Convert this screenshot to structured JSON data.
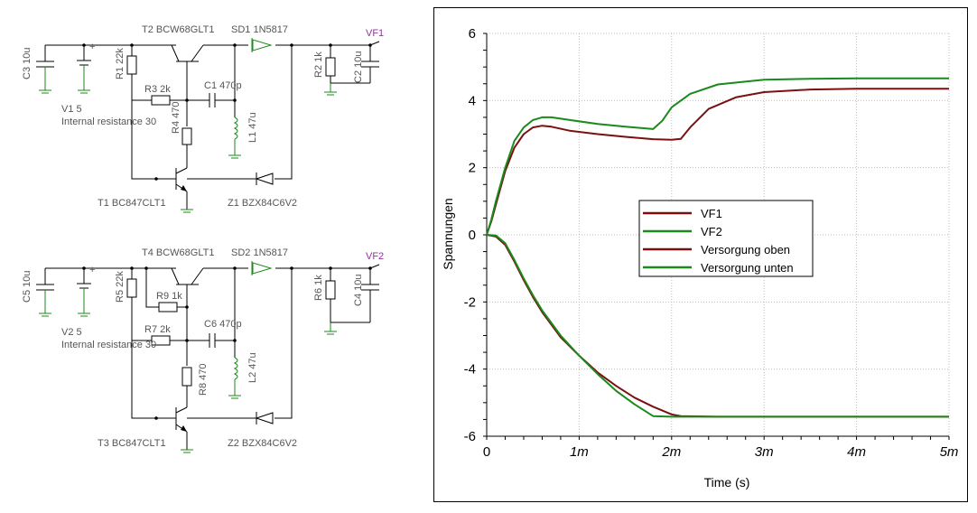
{
  "schematic": {
    "circuit1": {
      "C3": "C3 10u",
      "V1": "V1 5",
      "V1_note": "Internal resistance 30",
      "R1": "R1 22k",
      "T2": "T2 BCW68GLT1",
      "SD1": "SD1 1N5817",
      "VF": "VF1",
      "R2": "R2 1k",
      "C2": "C2 10u",
      "R3": "R3 2k",
      "C1": "C1 470p",
      "R4": "R4 470",
      "L1": "L1 47u",
      "T1": "T1 BC847CLT1",
      "Z1": "Z1 BZX84C6V2"
    },
    "circuit2": {
      "C5": "C5 10u",
      "V2": "V2 5",
      "V2_note": "Internal resistance 30",
      "R5": "R5 22k",
      "T4": "T4 BCW68GLT1",
      "SD2": "SD2 1N5817",
      "VF": "VF2",
      "R6": "R6 1k",
      "C4": "C4 10u",
      "R9": "R9 1k",
      "R7": "R7 2k",
      "C6": "C6 470p",
      "R8": "R8 470",
      "L2": "L2 47u",
      "T3": "T3 BC847CLT1",
      "Z2": "Z2 BZX84C6V2"
    }
  },
  "colors": {
    "dark_red": "#7a1010",
    "green": "#1a8a1a",
    "probe": "#9a2ea0"
  },
  "chart_data": {
    "type": "line",
    "xlabel": "Time (s)",
    "ylabel": "Spannungen",
    "xlim": [
      0,
      0.005
    ],
    "ylim": [
      -6,
      6
    ],
    "x_ticks": [
      0,
      0.001,
      0.002,
      0.003,
      0.004,
      0.005
    ],
    "x_tick_labels": [
      "0",
      "1m",
      "2m",
      "3m",
      "4m",
      "5m"
    ],
    "y_ticks": [
      -6,
      -4,
      -2,
      0,
      2,
      4,
      6
    ],
    "y_tick_labels": [
      "-6",
      "-4",
      "-2",
      "0",
      "2",
      "4",
      "6"
    ],
    "grid": true,
    "legend_position": "center",
    "series": [
      {
        "name": "VF1",
        "color": "#7a1010",
        "x": [
          0,
          5e-05,
          0.0001,
          0.0002,
          0.0003,
          0.0004,
          0.0005,
          0.0006,
          0.0007,
          0.0009,
          0.0012,
          0.0015,
          0.0018,
          0.002,
          0.0021,
          0.0022,
          0.0024,
          0.0027,
          0.003,
          0.0035,
          0.004,
          0.005
        ],
        "y": [
          0,
          0.4,
          0.9,
          1.9,
          2.6,
          3.0,
          3.2,
          3.25,
          3.22,
          3.1,
          3.0,
          2.92,
          2.85,
          2.83,
          2.86,
          3.2,
          3.75,
          4.1,
          4.25,
          4.33,
          4.35,
          4.35
        ]
      },
      {
        "name": "VF2",
        "color": "#1a8a1a",
        "x": [
          0,
          5e-05,
          0.0001,
          0.0002,
          0.0003,
          0.0004,
          0.0005,
          0.0006,
          0.0007,
          0.0009,
          0.0012,
          0.0015,
          0.0018,
          0.0019,
          0.002,
          0.0022,
          0.0025,
          0.003,
          0.0035,
          0.004,
          0.005
        ],
        "y": [
          0,
          0.45,
          1.0,
          2.0,
          2.8,
          3.2,
          3.42,
          3.5,
          3.5,
          3.42,
          3.3,
          3.22,
          3.15,
          3.4,
          3.8,
          4.2,
          4.48,
          4.62,
          4.65,
          4.66,
          4.66
        ]
      },
      {
        "name": "Versorgung oben",
        "color": "#7a1010",
        "x": [
          0,
          0.0001,
          0.0002,
          0.0003,
          0.0004,
          0.0005,
          0.0006,
          0.0008,
          0.001,
          0.0012,
          0.0014,
          0.0016,
          0.0018,
          0.002,
          0.0021,
          0.0025,
          0.003,
          0.005
        ],
        "y": [
          0,
          -0.05,
          -0.3,
          -0.8,
          -1.35,
          -1.85,
          -2.3,
          -3.05,
          -3.6,
          -4.1,
          -4.5,
          -4.85,
          -5.12,
          -5.35,
          -5.4,
          -5.42,
          -5.42,
          -5.42
        ]
      },
      {
        "name": "Versorgung unten",
        "color": "#1a8a1a",
        "x": [
          0,
          0.0001,
          0.0002,
          0.0003,
          0.0004,
          0.0005,
          0.0006,
          0.0008,
          0.001,
          0.0012,
          0.0014,
          0.0016,
          0.0018,
          0.002,
          0.0025,
          0.003,
          0.005
        ],
        "y": [
          0,
          -0.02,
          -0.25,
          -0.75,
          -1.3,
          -1.8,
          -2.25,
          -3.0,
          -3.6,
          -4.15,
          -4.65,
          -5.05,
          -5.4,
          -5.42,
          -5.42,
          -5.42,
          -5.42
        ]
      }
    ]
  }
}
